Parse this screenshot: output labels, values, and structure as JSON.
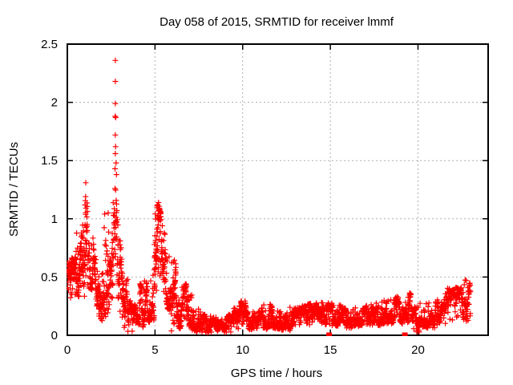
{
  "chart_data": {
    "type": "scatter",
    "title": "Day 058 of 2015, SRMTID for receiver lmmf",
    "xlabel": "GPS time / hours",
    "ylabel": "SRMTID / TECUs",
    "xlim": [
      0,
      24
    ],
    "ylim": [
      0,
      2.5
    ],
    "xticks": [
      {
        "v": 0,
        "label": "0"
      },
      {
        "v": 5,
        "label": "5"
      },
      {
        "v": 10,
        "label": "10"
      },
      {
        "v": 15,
        "label": "15"
      },
      {
        "v": 20,
        "label": "20"
      }
    ],
    "yticks": [
      {
        "v": 0,
        "label": "0"
      },
      {
        "v": 0.5,
        "label": "0.5"
      },
      {
        "v": 1,
        "label": "1"
      },
      {
        "v": 1.5,
        "label": "1.5"
      },
      {
        "v": 2,
        "label": "2"
      },
      {
        "v": 2.5,
        "label": "2.5"
      }
    ],
    "grid": true,
    "legend": "none",
    "series": [
      {
        "name": "SRMTID",
        "marker": "plus",
        "color": "#ff0000",
        "envelope_bins_format": [
          "t_start_hours",
          "t_end_hours",
          "y_min_TECUs",
          "y_max_TECUs",
          "n_points"
        ],
        "envelope_bins": [
          [
            0.0,
            0.25,
            0.28,
            0.66,
            40
          ],
          [
            0.25,
            0.5,
            0.3,
            0.68,
            40
          ],
          [
            0.5,
            0.75,
            0.3,
            0.88,
            40
          ],
          [
            0.75,
            1.0,
            0.33,
            0.95,
            40
          ],
          [
            1.0,
            1.15,
            0.45,
            1.28,
            25
          ],
          [
            1.15,
            1.5,
            0.38,
            0.85,
            45
          ],
          [
            1.5,
            1.8,
            0.25,
            0.75,
            40
          ],
          [
            1.8,
            2.1,
            0.12,
            0.62,
            40
          ],
          [
            2.1,
            2.4,
            0.15,
            1.05,
            40
          ],
          [
            2.4,
            2.6,
            0.3,
            0.9,
            30
          ],
          [
            2.6,
            2.9,
            0.45,
            1.3,
            40
          ],
          [
            2.9,
            3.2,
            0.05,
            0.85,
            45
          ],
          [
            3.2,
            3.5,
            0.03,
            0.5,
            40
          ],
          [
            3.5,
            3.8,
            0.03,
            0.3,
            40
          ],
          [
            3.8,
            4.1,
            0.02,
            0.28,
            40
          ],
          [
            4.1,
            4.4,
            0.05,
            0.45,
            40
          ],
          [
            4.4,
            4.7,
            0.08,
            0.48,
            40
          ],
          [
            4.7,
            4.95,
            0.12,
            0.55,
            35
          ],
          [
            4.95,
            5.1,
            0.35,
            1.05,
            28
          ],
          [
            5.1,
            5.35,
            0.45,
            1.12,
            40
          ],
          [
            5.35,
            5.6,
            0.3,
            0.95,
            35
          ],
          [
            5.6,
            5.9,
            0.2,
            0.7,
            35
          ],
          [
            5.9,
            6.2,
            0.02,
            0.65,
            45
          ],
          [
            6.2,
            6.5,
            0.05,
            0.35,
            40
          ],
          [
            6.5,
            6.8,
            0.1,
            0.45,
            40
          ],
          [
            6.8,
            7.1,
            0.05,
            0.35,
            40
          ],
          [
            7.1,
            7.6,
            0.03,
            0.22,
            60
          ],
          [
            7.6,
            8.1,
            0.02,
            0.18,
            60
          ],
          [
            8.1,
            8.6,
            0.02,
            0.16,
            60
          ],
          [
            8.6,
            9.1,
            0.02,
            0.15,
            60
          ],
          [
            9.1,
            9.5,
            0.03,
            0.18,
            50
          ],
          [
            9.5,
            9.9,
            0.05,
            0.26,
            50
          ],
          [
            9.9,
            10.2,
            0.08,
            0.31,
            40
          ],
          [
            10.2,
            10.7,
            0.04,
            0.22,
            60
          ],
          [
            10.7,
            11.2,
            0.05,
            0.24,
            60
          ],
          [
            11.2,
            11.7,
            0.05,
            0.28,
            60
          ],
          [
            11.7,
            12.2,
            0.05,
            0.24,
            60
          ],
          [
            12.2,
            12.7,
            0.04,
            0.22,
            60
          ],
          [
            12.7,
            13.2,
            0.05,
            0.24,
            60
          ],
          [
            13.2,
            13.7,
            0.07,
            0.26,
            60
          ],
          [
            13.7,
            14.2,
            0.08,
            0.28,
            60
          ],
          [
            14.2,
            14.7,
            0.08,
            0.3,
            60
          ],
          [
            14.7,
            15.2,
            0.08,
            0.28,
            60
          ],
          [
            15.2,
            15.7,
            0.07,
            0.26,
            60
          ],
          [
            15.7,
            16.2,
            0.06,
            0.24,
            60
          ],
          [
            16.2,
            16.7,
            0.07,
            0.25,
            60
          ],
          [
            16.7,
            17.2,
            0.08,
            0.26,
            60
          ],
          [
            17.2,
            17.7,
            0.08,
            0.28,
            60
          ],
          [
            17.7,
            18.2,
            0.08,
            0.3,
            60
          ],
          [
            18.2,
            18.7,
            0.09,
            0.32,
            60
          ],
          [
            18.7,
            19.2,
            0.1,
            0.33,
            60
          ],
          [
            19.2,
            19.6,
            0.1,
            0.37,
            50
          ],
          [
            19.6,
            20.1,
            0.03,
            0.25,
            55
          ],
          [
            20.1,
            20.6,
            0.06,
            0.28,
            55
          ],
          [
            20.6,
            21.1,
            0.06,
            0.3,
            55
          ],
          [
            21.1,
            21.6,
            0.1,
            0.36,
            55
          ],
          [
            21.6,
            22.1,
            0.12,
            0.41,
            55
          ],
          [
            22.1,
            22.6,
            0.14,
            0.42,
            55
          ],
          [
            22.6,
            23.0,
            0.12,
            0.48,
            45
          ]
        ],
        "peak_points": [
          [
            2.74,
            2.36
          ],
          [
            2.74,
            2.18
          ],
          [
            2.74,
            1.99
          ],
          [
            2.73,
            1.88
          ],
          [
            2.76,
            1.87
          ],
          [
            2.74,
            1.72
          ],
          [
            2.75,
            1.62
          ],
          [
            2.74,
            1.56
          ],
          [
            2.78,
            1.48
          ],
          [
            2.72,
            1.43
          ],
          [
            2.8,
            1.38
          ],
          [
            1.05,
            1.31
          ],
          [
            1.04,
            1.19
          ],
          [
            1.06,
            1.09
          ],
          [
            2.33,
            1.05
          ],
          [
            5.2,
            1.14
          ],
          [
            5.15,
            1.12
          ],
          [
            22.75,
            0.47
          ]
        ]
      },
      {
        "name": "flag-markers",
        "marker": "filled-square",
        "color": "#ff0000",
        "points": [
          [
            14.93,
            0
          ],
          [
            19.25,
            0
          ]
        ]
      }
    ]
  },
  "style": {
    "marker_color": "#ff0000",
    "grid_color": "#b0b0b0",
    "axis_color": "#000000",
    "text_color": "#000000",
    "plot_bg": "#ffffff"
  }
}
